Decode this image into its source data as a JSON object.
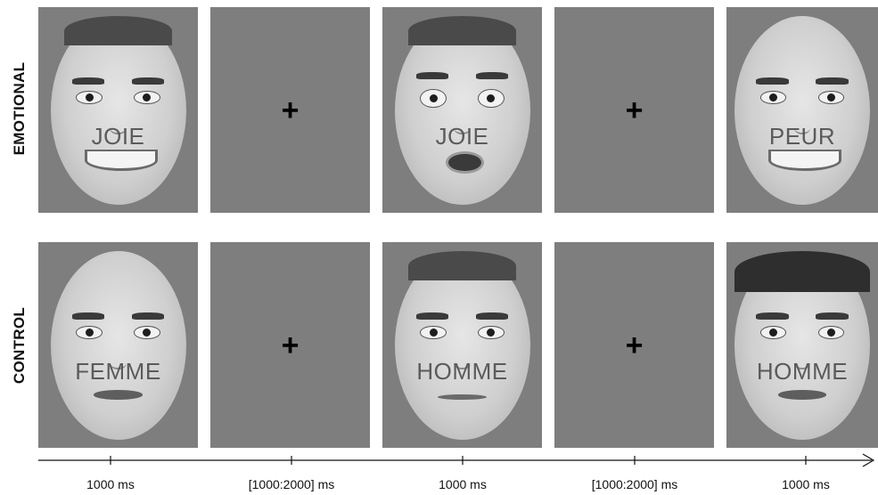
{
  "rows": [
    {
      "label": "EMOTIONAL",
      "frames": [
        {
          "type": "face",
          "word": "JOIE",
          "expression": "smile",
          "hair": "short-dark"
        },
        {
          "type": "fixation",
          "symbol": "+"
        },
        {
          "type": "face",
          "word": "JOIE",
          "expression": "fear",
          "hair": "short-dark"
        },
        {
          "type": "fixation",
          "symbol": "+"
        },
        {
          "type": "face",
          "word": "PEUR",
          "expression": "smile",
          "hair": "none"
        }
      ]
    },
    {
      "label": "CONTROL",
      "frames": [
        {
          "type": "face",
          "word": "FEMME",
          "expression": "neutral",
          "hair": "none"
        },
        {
          "type": "fixation",
          "symbol": "+"
        },
        {
          "type": "face",
          "word": "HOMME",
          "expression": "neutral",
          "hair": "short-dark"
        },
        {
          "type": "fixation",
          "symbol": "+"
        },
        {
          "type": "face",
          "word": "HOMME",
          "expression": "neutral",
          "hair": "long-dark"
        }
      ]
    }
  ],
  "timeline": {
    "labels": [
      "1000 ms",
      "[1000:2000] ms",
      "1000 ms",
      "[1000:2000] ms",
      "1000 ms"
    ]
  },
  "colors": {
    "panel_background": "#7e7e7e",
    "text": "#111111",
    "fixation": "#000000"
  }
}
